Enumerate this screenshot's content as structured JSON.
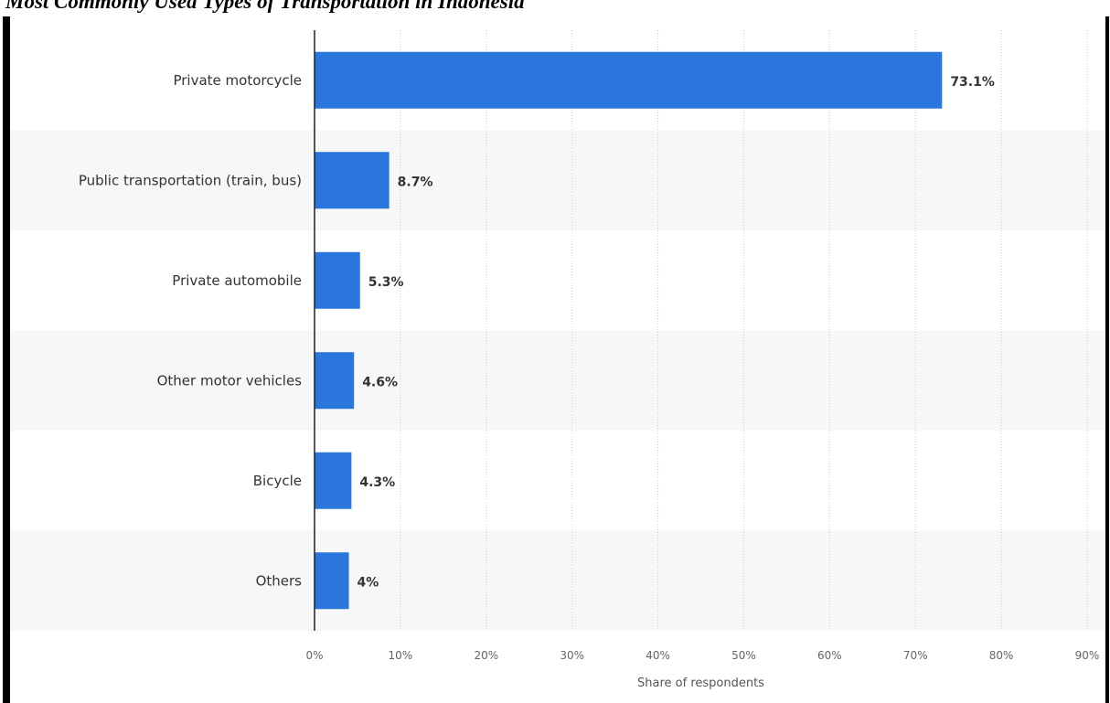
{
  "page": {
    "title": "Most Commonly Used Types of Transportation in Indonesia"
  },
  "chart_data": {
    "type": "bar",
    "orientation": "horizontal",
    "categories": [
      "Private motorcycle",
      "Public transportation (train, bus)",
      "Private automobile",
      "Other motor vehicles",
      "Bicycle",
      "Others"
    ],
    "values": [
      73.1,
      8.7,
      5.3,
      4.6,
      4.3,
      4
    ],
    "value_labels": [
      "73.1%",
      "8.7%",
      "5.3%",
      "4.6%",
      "4.3%",
      "4%"
    ],
    "xlabel": "Share of respondents",
    "ylabel": "",
    "xlim": [
      0,
      90
    ],
    "x_ticks": [
      0,
      10,
      20,
      30,
      40,
      50,
      60,
      70,
      80,
      90
    ],
    "x_tick_labels": [
      "0%",
      "10%",
      "20%",
      "30%",
      "40%",
      "50%",
      "60%",
      "70%",
      "80%",
      "90%"
    ],
    "grid": "vertical dotted",
    "colors": {
      "bar": "#2a76dd",
      "band": "#f7f7f7",
      "frame": "#000000"
    }
  }
}
